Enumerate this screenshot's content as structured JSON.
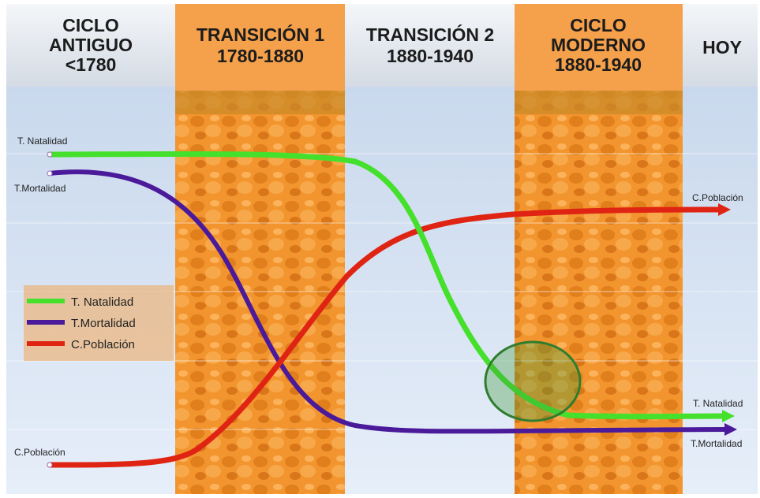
{
  "header": {
    "columns": [
      {
        "lines": [
          "CICLO",
          "ANTIGUO",
          "<1780"
        ]
      },
      {
        "lines": [
          "TRANSICIÓN 1",
          "1780-1880"
        ]
      },
      {
        "lines": [
          "TRANSICIÓN 2",
          "1880-1940"
        ]
      },
      {
        "lines": [
          "CICLO",
          "MODERNO",
          "1880-1940"
        ]
      },
      {
        "lines": [
          "HOY"
        ]
      }
    ]
  },
  "curve_labels": {
    "start": [
      "T. Natalidad",
      "T.Mortalidad",
      "C.Población"
    ],
    "end": [
      "C.Población",
      "T. Natalidad",
      "T.Mortalidad"
    ]
  },
  "legend": {
    "items": [
      "T. Natalidad",
      "T.Mortalidad",
      "C.Población"
    ]
  }
}
